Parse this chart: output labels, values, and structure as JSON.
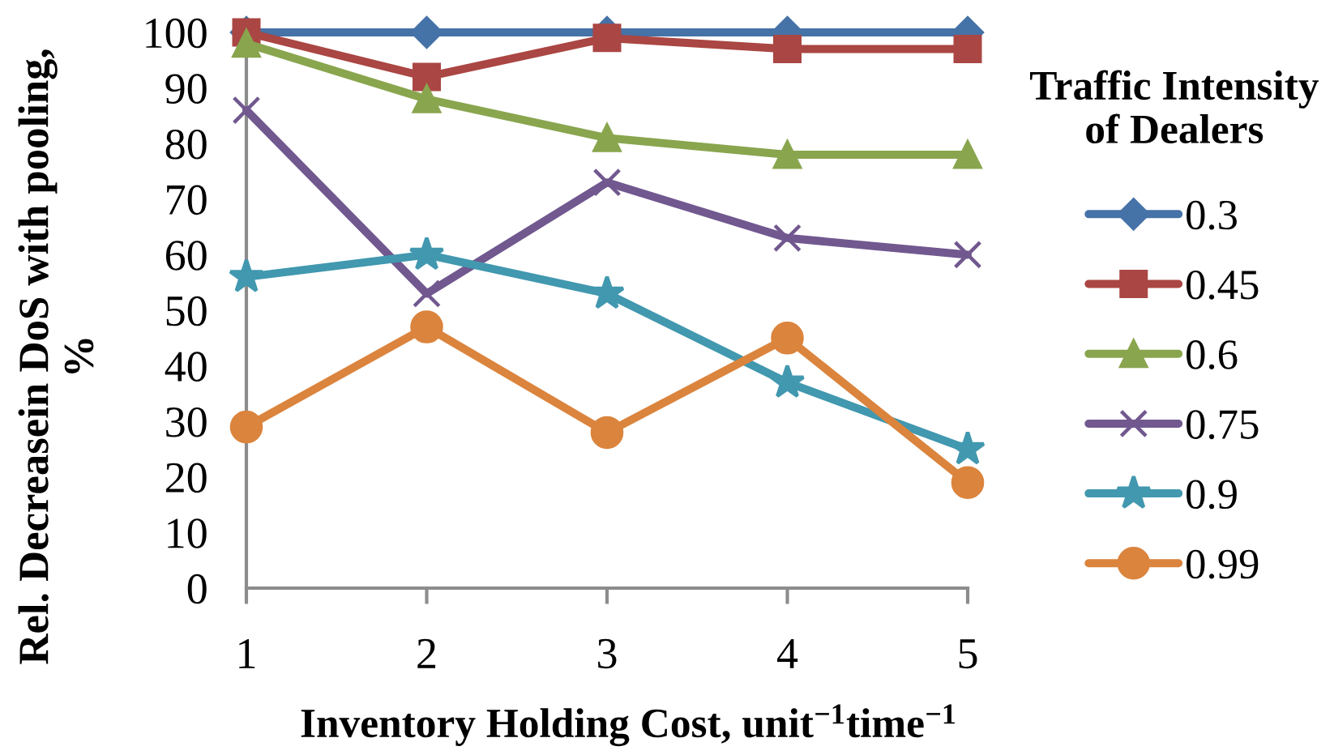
{
  "chart_data": {
    "type": "line",
    "xlabel": "Inventory Holding Cost, unit$^{−1}$time$^{−1}$",
    "ylabel": "Rel. Decreasein DoS with pooling,\n%",
    "legend_title": "Traffic Intensity\nof Dealers",
    "legend": "right",
    "grid": false,
    "categories": [
      "1",
      "2",
      "3",
      "4",
      "5"
    ],
    "ylim": [
      0,
      100
    ],
    "yticks": [
      0,
      10,
      20,
      30,
      40,
      50,
      60,
      70,
      80,
      90,
      100
    ],
    "series": [
      {
        "name": "0.3",
        "color": "#4572a7",
        "marker": "diamond",
        "values": [
          100,
          100,
          100,
          100,
          100
        ]
      },
      {
        "name": "0.45",
        "color": "#aa4643",
        "marker": "square",
        "values": [
          100,
          92,
          99,
          97,
          97
        ]
      },
      {
        "name": "0.6",
        "color": "#89a54e",
        "marker": "triangle",
        "values": [
          98,
          88,
          81,
          78,
          78
        ]
      },
      {
        "name": "0.75",
        "color": "#71588f",
        "marker": "cross",
        "values": [
          86,
          53,
          73,
          63,
          60
        ]
      },
      {
        "name": "0.9",
        "color": "#4198af",
        "marker": "star",
        "values": [
          56,
          60,
          53,
          37,
          25
        ]
      },
      {
        "name": "0.99",
        "color": "#db843d",
        "marker": "circle",
        "values": [
          29,
          47,
          28,
          45,
          19
        ]
      }
    ]
  }
}
